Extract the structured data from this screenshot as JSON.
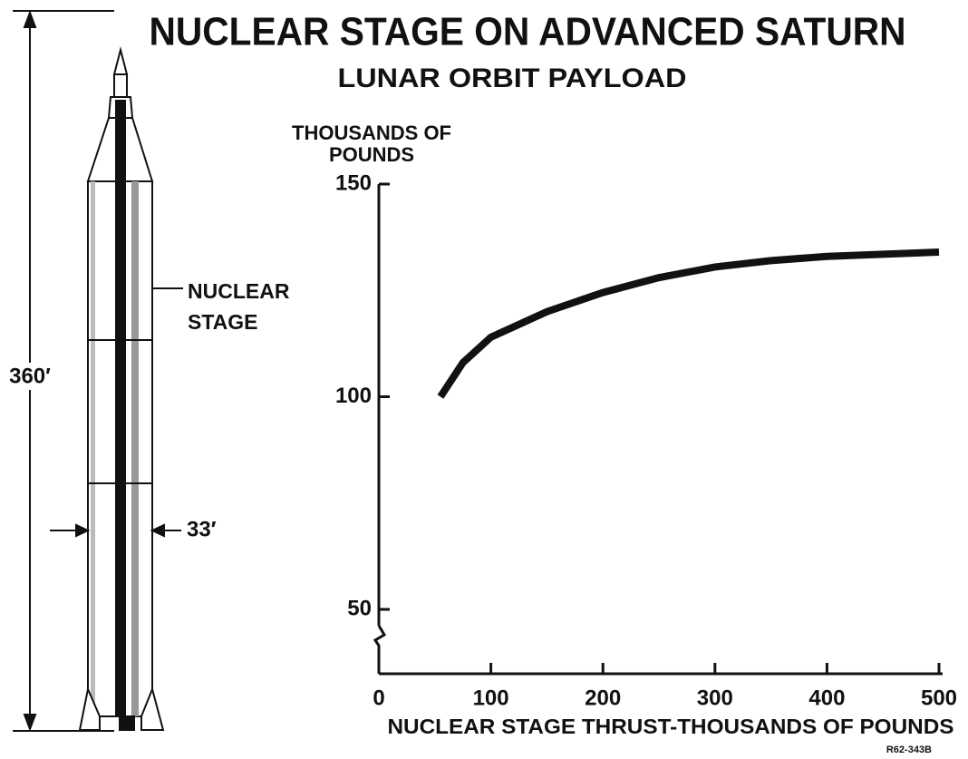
{
  "chart_data": {
    "type": "line",
    "title": "NUCLEAR STAGE ON ADVANCED SATURN",
    "subtitle": "LUNAR ORBIT PAYLOAD",
    "ylabel": [
      "THOUSANDS OF",
      "POUNDS"
    ],
    "xlabel": "NUCLEAR STAGE THRUST-THOUSANDS OF POUNDS",
    "x": [
      55,
      75,
      100,
      150,
      200,
      250,
      300,
      350,
      400,
      450,
      500
    ],
    "values": [
      100,
      108,
      114,
      120,
      124.5,
      128,
      130.5,
      132,
      133,
      133.5,
      134
    ],
    "color": "#111111",
    "xlim": [
      0,
      500
    ],
    "xticks": [
      0,
      100,
      200,
      300,
      400,
      500
    ],
    "ylim": [
      50,
      150
    ],
    "yticks": [
      50,
      100,
      150
    ],
    "annotations": {
      "height": "360′",
      "diameter": "33′",
      "stage": [
        "NUCLEAR",
        "STAGE"
      ],
      "code": "R62-343B"
    }
  }
}
